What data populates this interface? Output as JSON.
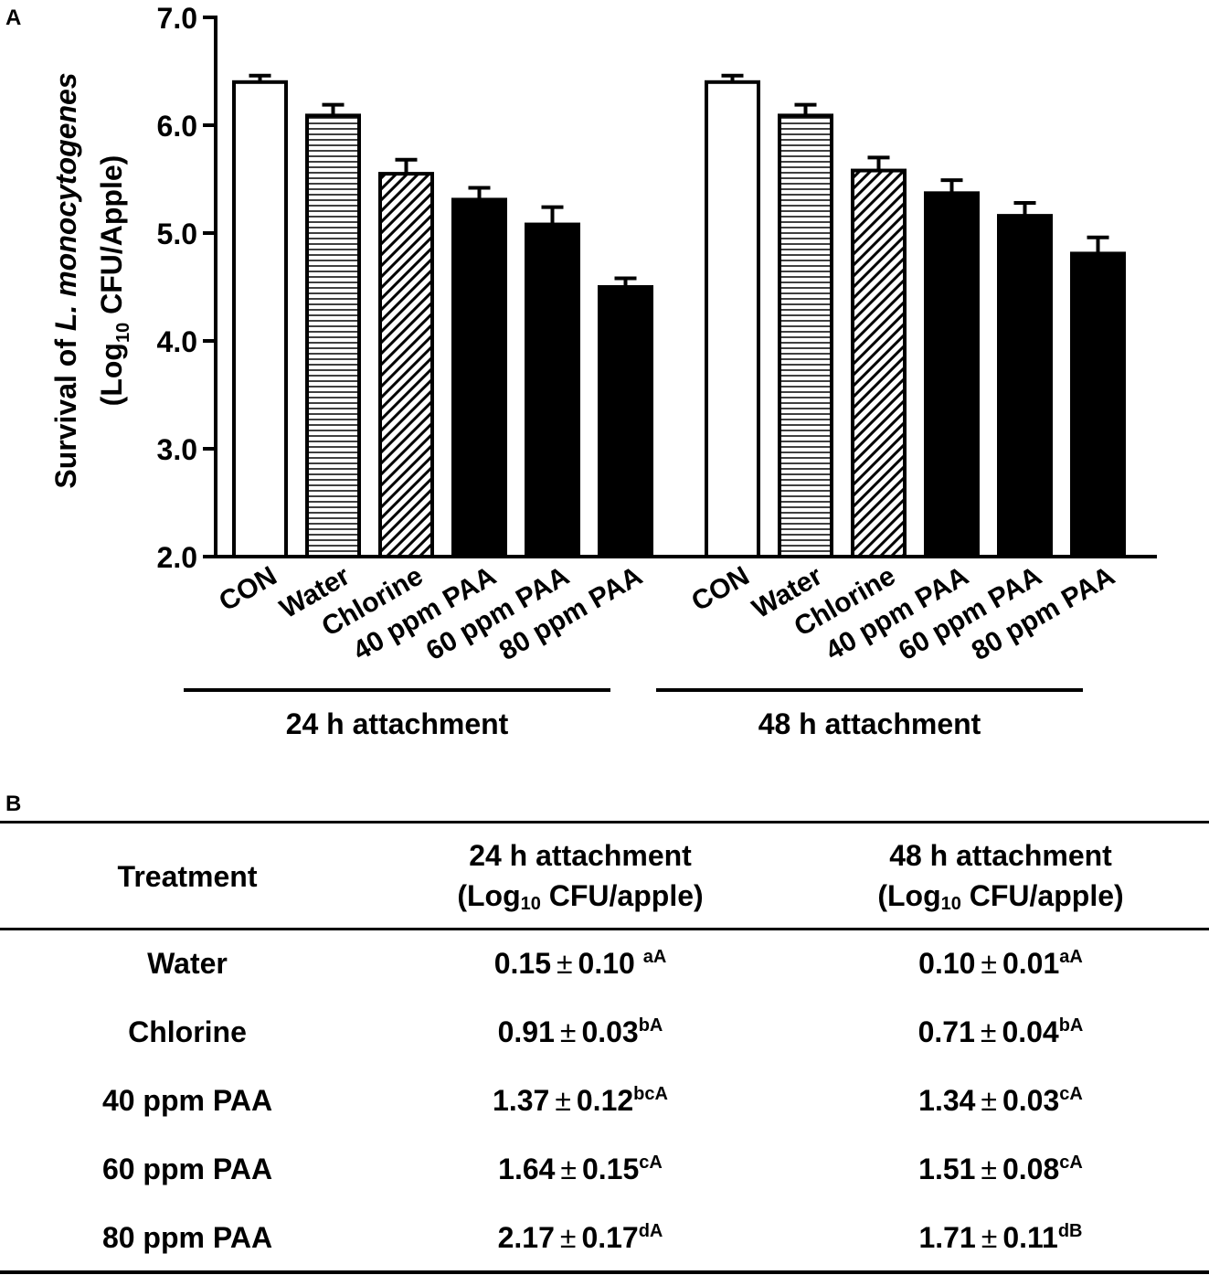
{
  "panel_a_label": "A",
  "panel_b_label": "B",
  "chart_data": {
    "type": "bar",
    "ylabel": {
      "prefix": "Survival of ",
      "italic": "L. monocytogenes",
      "line2_pre": "(Log",
      "line2_sub": "10",
      "line2_post": " CFU/Apple)"
    },
    "ylim": [
      2.0,
      7.0
    ],
    "yticks": [
      "2.0",
      "3.0",
      "4.0",
      "5.0",
      "6.0",
      "7.0"
    ],
    "categories": [
      "CON",
      "Water",
      "Chlorine",
      "40 ppm PAA",
      "60 ppm PAA",
      "80 ppm PAA"
    ],
    "fill_patterns": [
      "open",
      "horizontal-lines",
      "diagonal-hatch",
      "solid",
      "solid",
      "solid"
    ],
    "groups": [
      {
        "name": "24 h attachment",
        "values": [
          6.4,
          6.09,
          5.55,
          5.31,
          5.08,
          4.5
        ],
        "errors": [
          0.06,
          0.1,
          0.13,
          0.11,
          0.16,
          0.08
        ]
      },
      {
        "name": "48 h attachment",
        "values": [
          6.4,
          6.09,
          5.58,
          5.37,
          5.16,
          4.81
        ],
        "errors": [
          0.06,
          0.1,
          0.12,
          0.12,
          0.12,
          0.15
        ]
      }
    ]
  },
  "table": {
    "headers": {
      "treatment": "Treatment",
      "col24_line1": "24 h attachment",
      "col48_line1": "48 h attachment",
      "unit_pre": "(Log",
      "unit_sub": "10",
      "unit_post": " CFU/apple)"
    },
    "pm_symbol": "±",
    "rows": [
      {
        "treatment": "Water",
        "v24": "0.15",
        "e24": "0.10 ",
        "s24": "aA",
        "v48": "0.10",
        "e48": "0.01",
        "s48": "aA"
      },
      {
        "treatment": "Chlorine",
        "v24": "0.91",
        "e24": "0.03",
        "s24": "bA",
        "v48": "0.71",
        "e48": "0.04",
        "s48": "bA"
      },
      {
        "treatment": "40 ppm PAA",
        "v24": "1.37",
        "e24": "0.12",
        "s24": "bcA",
        "v48": "1.34",
        "e48": "0.03",
        "s48": "cA"
      },
      {
        "treatment": "60 ppm PAA",
        "v24": "1.64",
        "e24": "0.15",
        "s24": "cA",
        "v48": "1.51",
        "e48": "0.08",
        "s48": "cA"
      },
      {
        "treatment": "80 ppm PAA",
        "v24": "2.17",
        "e24": "0.17",
        "s24": "dA",
        "v48": "1.71",
        "e48": "0.11",
        "s48": "dB"
      }
    ]
  }
}
